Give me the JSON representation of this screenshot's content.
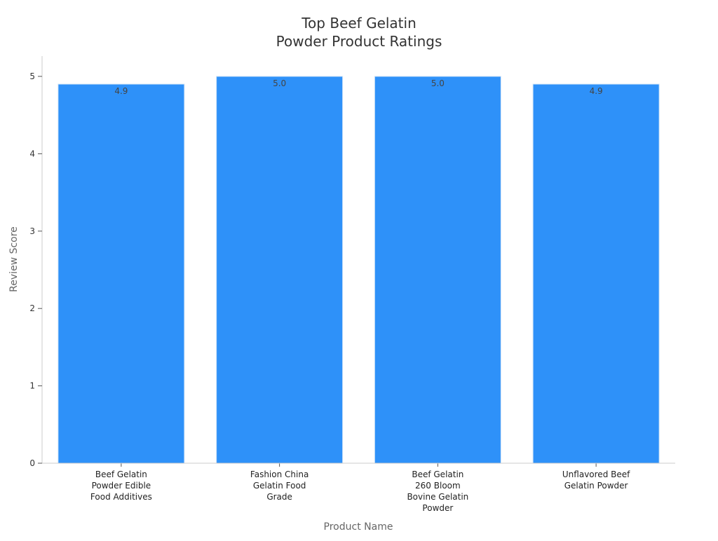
{
  "chart_data": {
    "type": "bar",
    "title_lines": [
      "Top Beef Gelatin",
      "Powder Product Ratings"
    ],
    "xlabel": "Product Name",
    "ylabel": "Review Score",
    "categories": [
      [
        "Beef Gelatin",
        "Powder Edible",
        "Food Additives"
      ],
      [
        "Fashion China",
        "Gelatin Food",
        "Grade"
      ],
      [
        "Beef Gelatin",
        "260 Bloom",
        "Bovine Gelatin",
        "Powder"
      ],
      [
        "Unflavored Beef",
        "Gelatin Powder"
      ]
    ],
    "values": [
      4.9,
      5.0,
      5.0,
      4.9
    ],
    "value_labels": [
      "4.9",
      "5.0",
      "5.0",
      "4.9"
    ],
    "ylim": [
      0,
      5.2
    ],
    "yticks": [
      0,
      1,
      2,
      3,
      4,
      5
    ],
    "grid": false,
    "legend": "none",
    "bar_color": "#2e91f9",
    "bar_edge_color": "#cfe3f7"
  }
}
